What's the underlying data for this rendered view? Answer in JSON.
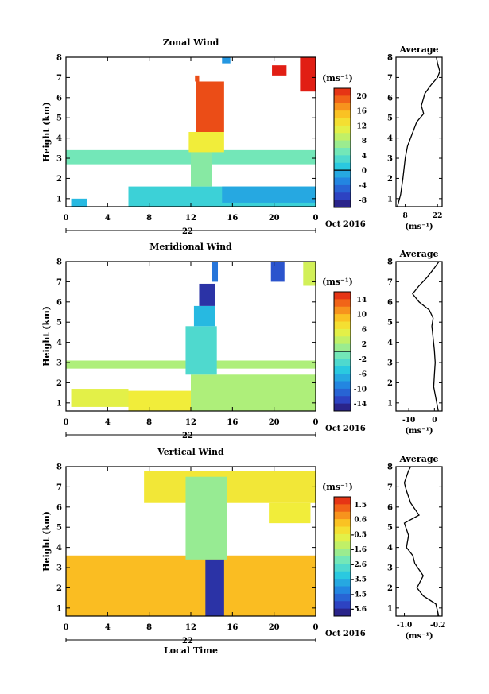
{
  "chart_data": [
    {
      "type": "heatmap",
      "title": "Zonal Wind",
      "ylabel": "Height (km)",
      "xticks": [
        "0",
        "4",
        "8",
        "12",
        "16",
        "20",
        "0"
      ],
      "xlim": [
        0,
        24
      ],
      "yticks": [
        "1",
        "2",
        "3",
        "4",
        "5",
        "6",
        "7",
        "8"
      ],
      "ylim": [
        0.6,
        8
      ],
      "day_label": "22",
      "month_label": "Oct 2016",
      "colorbar": {
        "unit": "(ms⁻¹)",
        "ticks": [
          "20",
          "16",
          "12",
          "8",
          "4",
          "0",
          "-4",
          "-8"
        ],
        "range": [
          -10,
          22
        ],
        "contour_level": 0
      },
      "regions": [
        {
          "x": [
            0,
            24
          ],
          "y": [
            2.7,
            3.4
          ],
          "value": 5
        },
        {
          "x": [
            0.5,
            2
          ],
          "y": [
            0.6,
            1.0
          ],
          "value": 0
        },
        {
          "x": [
            6,
            24
          ],
          "y": [
            0.6,
            1.6
          ],
          "value": 2
        },
        {
          "x": [
            12,
            14
          ],
          "y": [
            1.6,
            3.6
          ],
          "value": 6
        },
        {
          "x": [
            15,
            24
          ],
          "y": [
            0.8,
            1.6
          ],
          "value": -1
        },
        {
          "x": [
            11.8,
            15.2
          ],
          "y": [
            3.3,
            4.3
          ],
          "value": 12
        },
        {
          "x": [
            12.5,
            15.2
          ],
          "y": [
            4.3,
            6.8
          ],
          "value": 20
        },
        {
          "x": [
            12.4,
            12.8
          ],
          "y": [
            6.8,
            7.1
          ],
          "value": 20
        },
        {
          "x": [
            15,
            15.8
          ],
          "y": [
            7.7,
            8.0
          ],
          "value": -2
        },
        {
          "x": [
            19.8,
            21.2
          ],
          "y": [
            7.1,
            7.6
          ],
          "value": 22
        },
        {
          "x": [
            22.5,
            24
          ],
          "y": [
            6.3,
            8.0
          ],
          "value": 22
        }
      ],
      "average": {
        "title": "Average",
        "xlabel": "(ms⁻¹)",
        "xticks": [
          "8",
          "22"
        ],
        "xlim": [
          4,
          24
        ],
        "profile": [
          [
            4.6,
            0.6
          ],
          [
            6,
            1.2
          ],
          [
            7,
            2
          ],
          [
            8,
            3
          ],
          [
            9,
            3.6
          ],
          [
            11,
            4.2
          ],
          [
            13,
            4.8
          ],
          [
            16,
            5.2
          ],
          [
            15,
            5.6
          ],
          [
            16.5,
            6.2
          ],
          [
            19,
            6.6
          ],
          [
            22,
            7
          ],
          [
            23,
            7.3
          ],
          [
            22,
            7.7
          ],
          [
            21.5,
            8
          ]
        ]
      }
    },
    {
      "type": "heatmap",
      "title": "Meridional Wind",
      "ylabel": "Height (km)",
      "xticks": [
        "0",
        "4",
        "8",
        "12",
        "16",
        "20",
        "0"
      ],
      "xlim": [
        0,
        24
      ],
      "yticks": [
        "1",
        "2",
        "3",
        "4",
        "5",
        "6",
        "7",
        "8"
      ],
      "ylim": [
        0.6,
        8
      ],
      "day_label": "22",
      "month_label": "Oct 2016",
      "colorbar": {
        "unit": "(ms⁻¹)",
        "ticks": [
          "14",
          "10",
          "6",
          "2",
          "-2",
          "-6",
          "-10",
          "-14"
        ],
        "range": [
          -16,
          16
        ],
        "contour_level": 0
      },
      "regions": [
        {
          "x": [
            0,
            24
          ],
          "y": [
            2.7,
            3.1
          ],
          "value": 2
        },
        {
          "x": [
            0.5,
            6
          ],
          "y": [
            0.8,
            1.7
          ],
          "value": 5
        },
        {
          "x": [
            6,
            12
          ],
          "y": [
            0.6,
            1.6
          ],
          "value": 6
        },
        {
          "x": [
            12,
            24
          ],
          "y": [
            0.6,
            2.4
          ],
          "value": 2
        },
        {
          "x": [
            11.5,
            14.5
          ],
          "y": [
            2.4,
            4.8
          ],
          "value": -3
        },
        {
          "x": [
            12.3,
            14.3
          ],
          "y": [
            4.8,
            5.8
          ],
          "value": -6
        },
        {
          "x": [
            12.8,
            14.3
          ],
          "y": [
            5.8,
            6.9
          ],
          "value": -14
        },
        {
          "x": [
            14,
            14.6
          ],
          "y": [
            7.0,
            8.0
          ],
          "value": -10
        },
        {
          "x": [
            19.7,
            21
          ],
          "y": [
            7.0,
            8.0
          ],
          "value": -12
        },
        {
          "x": [
            22.8,
            24
          ],
          "y": [
            6.8,
            8.0
          ],
          "value": 4
        }
      ],
      "average": {
        "title": "Average",
        "xlabel": "(ms⁻¹)",
        "xticks": [
          "-10",
          "0"
        ],
        "xlim": [
          -15,
          3
        ],
        "profile": [
          [
            1.5,
            0.6
          ],
          [
            0.6,
            1.2
          ],
          [
            -0.3,
            1.8
          ],
          [
            0,
            2.4
          ],
          [
            0.3,
            3
          ],
          [
            0,
            3.6
          ],
          [
            -0.5,
            4.2
          ],
          [
            -1,
            4.8
          ],
          [
            -0.5,
            5.2
          ],
          [
            -2,
            5.6
          ],
          [
            -6,
            6.0
          ],
          [
            -8.5,
            6.4
          ],
          [
            -6,
            6.8
          ],
          [
            -3,
            7.2
          ],
          [
            -0.5,
            7.6
          ],
          [
            1.8,
            8
          ]
        ]
      }
    },
    {
      "type": "heatmap",
      "title": "Vertical Wind",
      "ylabel": "Height (km)",
      "xlabel": "Local Time",
      "xticks": [
        "0",
        "4",
        "8",
        "12",
        "16",
        "20",
        "0"
      ],
      "xlim": [
        0,
        24
      ],
      "yticks": [
        "1",
        "2",
        "3",
        "4",
        "5",
        "6",
        "7",
        "8"
      ],
      "ylim": [
        0.6,
        8
      ],
      "day_label": "22",
      "month_label": "Oct 2016",
      "colorbar": {
        "unit": "(ms⁻¹)",
        "ticks": [
          "1.5",
          "0.6",
          "-0.5",
          "-1.6",
          "-2.6",
          "-3.5",
          "-4.5",
          "-5.6"
        ],
        "range": [
          -6.0,
          2.0
        ]
      },
      "regions": [
        {
          "x": [
            0,
            24
          ],
          "y": [
            0.6,
            3.6
          ],
          "value": 0.3
        },
        {
          "x": [
            7.5,
            24
          ],
          "y": [
            6.2,
            7.8
          ],
          "value": -0.4
        },
        {
          "x": [
            11.5,
            15.5
          ],
          "y": [
            3.4,
            7.5
          ],
          "value": -1.8
        },
        {
          "x": [
            13.4,
            15.2
          ],
          "y": [
            0.6,
            3.4
          ],
          "value": -5.5
        },
        {
          "x": [
            19.5,
            23.5
          ],
          "y": [
            5.2,
            6.2
          ],
          "value": -0.5
        }
      ],
      "average": {
        "title": "Average",
        "xlabel": "(ms⁻¹)",
        "xticks": [
          "-1.0",
          "-0.2"
        ],
        "xlim": [
          -1.2,
          -0.1
        ],
        "profile": [
          [
            -0.18,
            0.6
          ],
          [
            -0.25,
            1.2
          ],
          [
            -0.55,
            1.6
          ],
          [
            -0.7,
            2.0
          ],
          [
            -0.55,
            2.6
          ],
          [
            -0.75,
            3.2
          ],
          [
            -0.8,
            3.6
          ],
          [
            -0.95,
            4.0
          ],
          [
            -0.9,
            4.6
          ],
          [
            -1.0,
            5.2
          ],
          [
            -0.65,
            5.6
          ],
          [
            -0.85,
            6.2
          ],
          [
            -0.95,
            6.8
          ],
          [
            -1.0,
            7.2
          ],
          [
            -0.9,
            7.8
          ],
          [
            -0.85,
            8.0
          ]
        ]
      }
    }
  ]
}
